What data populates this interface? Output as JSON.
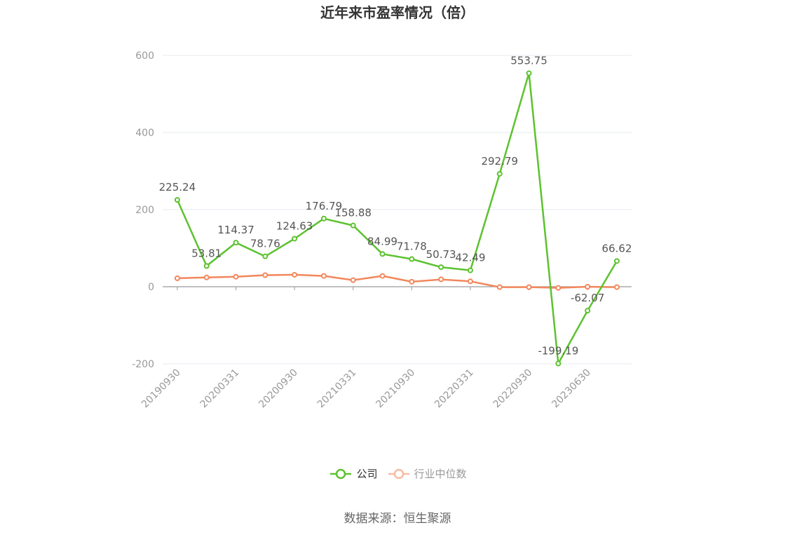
{
  "source": "数据来源：恒生聚源",
  "colors": {
    "company": "#5cc22e",
    "industry": "#f2875c",
    "industry_legend": "#f7bca3",
    "grid": "#e6e8ef",
    "axis": "#9a9a9a",
    "tick_label": "#999999",
    "data_label": "#555555"
  },
  "chart_data": {
    "type": "line",
    "title": "近年来市盈率情况（倍）",
    "x_labels": [
      "20190930",
      "",
      "20200331",
      "",
      "20200930",
      "",
      "20210331",
      "",
      "20210930",
      "",
      "20220331",
      "",
      "20220930",
      "",
      "20230630",
      ""
    ],
    "y_ticks": [
      -200,
      0,
      200,
      400,
      600
    ],
    "ylim": [
      -200,
      600
    ],
    "grid": true,
    "legend_position": "bottom",
    "series": [
      {
        "name": "公司",
        "values": [
          225.24,
          53.81,
          114.37,
          78.76,
          124.63,
          176.79,
          158.88,
          84.99,
          71.78,
          50.73,
          42.49,
          292.79,
          553.75,
          -199.19,
          -62.07,
          66.62
        ],
        "data_labels": true
      },
      {
        "name": "行业中位数",
        "values": [
          22,
          24,
          26,
          30,
          31,
          28,
          17,
          28,
          13,
          19,
          14,
          -1,
          -1,
          -3,
          0,
          -1
        ],
        "data_labels": false
      }
    ]
  }
}
